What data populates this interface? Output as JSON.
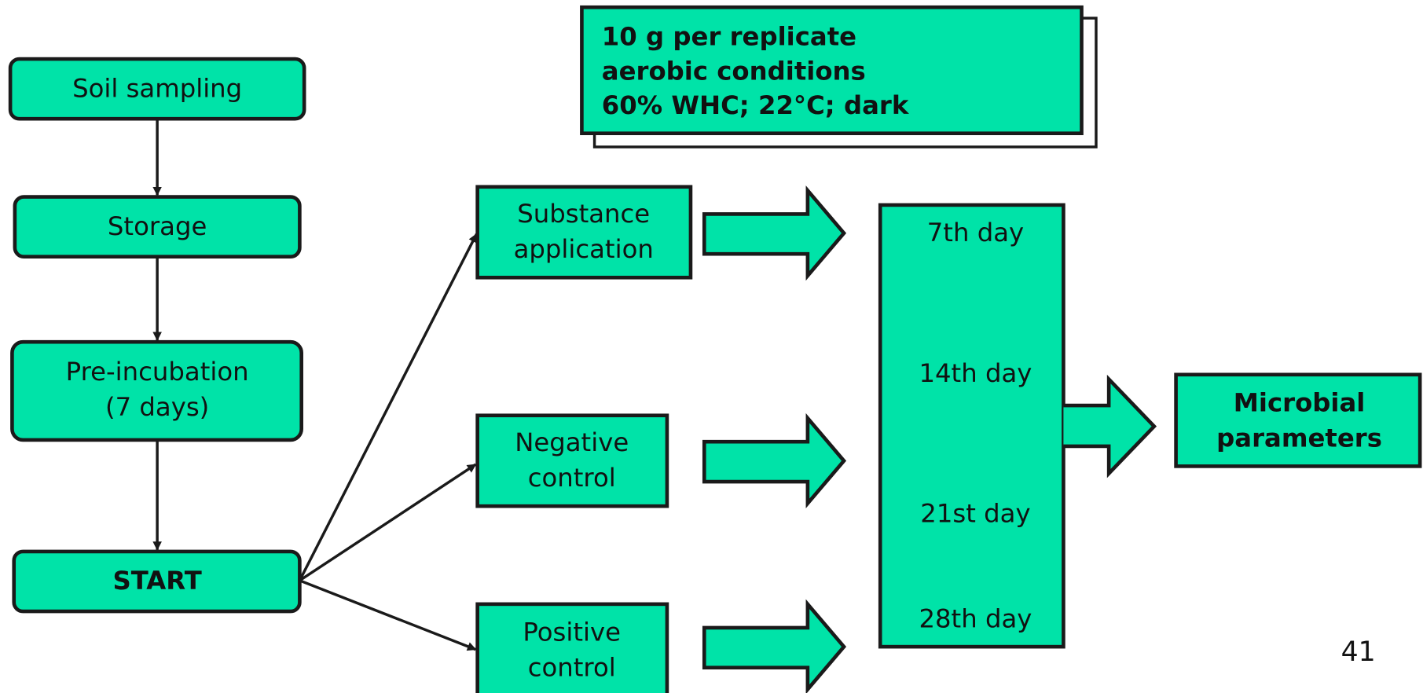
{
  "note": {
    "lines": [
      "10 g per replicate",
      "aerobic conditions",
      "60% WHC; 22°C; dark"
    ]
  },
  "steps": [
    {
      "lines": [
        "Soil sampling"
      ]
    },
    {
      "lines": [
        "Storage"
      ]
    },
    {
      "lines": [
        "Pre-incubation",
        "(7 days)"
      ]
    },
    {
      "lines": [
        "START"
      ]
    }
  ],
  "treatments": [
    {
      "lines": [
        "Substance",
        "application"
      ]
    },
    {
      "lines": [
        "Negative",
        "control"
      ]
    },
    {
      "lines": [
        "Positive",
        "control"
      ]
    }
  ],
  "sampling_days": [
    "7th day",
    "14th day",
    "21st day",
    "28th day"
  ],
  "result": {
    "lines": [
      "Microbial",
      "parameters"
    ]
  },
  "page_number": "41"
}
